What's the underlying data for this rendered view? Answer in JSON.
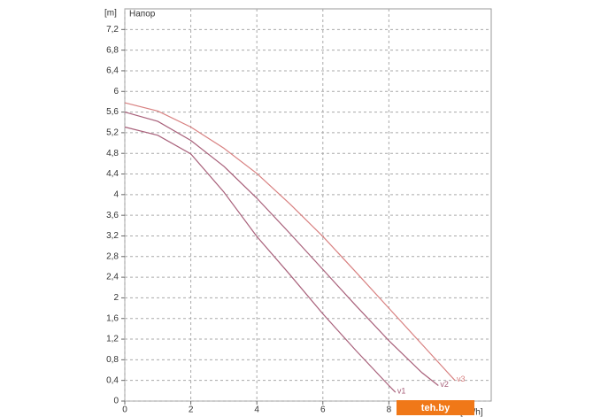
{
  "chart_data": {
    "type": "line",
    "y_label": "[m]",
    "title": "Напор",
    "x_label": "[m³/h]",
    "watermark": "teh.by",
    "series": [
      {
        "name": "v1",
        "color": "#a8607a",
        "x": [
          0,
          1,
          2,
          3,
          4,
          5,
          6,
          7,
          8,
          8.2
        ],
        "values": [
          5.31,
          5.15,
          4.79,
          4.05,
          3.19,
          2.45,
          1.69,
          0.98,
          0.3,
          0.17
        ]
      },
      {
        "name": "v2",
        "color": "#a8607a",
        "x": [
          0,
          1,
          2,
          3,
          4,
          5,
          6,
          7,
          8,
          9,
          9.5
        ],
        "values": [
          5.6,
          5.42,
          5.05,
          4.55,
          3.93,
          3.25,
          2.55,
          1.85,
          1.17,
          0.55,
          0.3
        ]
      },
      {
        "name": "v3",
        "color": "#d88080",
        "x": [
          0,
          1,
          2,
          3,
          4,
          5,
          6,
          7,
          8,
          9,
          10
        ],
        "values": [
          5.78,
          5.62,
          5.31,
          4.9,
          4.41,
          3.82,
          3.19,
          2.5,
          1.8,
          1.1,
          0.4
        ]
      }
    ],
    "xlim": [
      0,
      11.1
    ],
    "ylim": [
      0,
      7.6
    ],
    "xticks": [
      0,
      2,
      4,
      6,
      8
    ],
    "yticks": [
      0,
      {
        "value": 0.4,
        "label": "0,4"
      },
      {
        "value": 0.8,
        "label": "0,8"
      },
      {
        "value": 1.2,
        "label": "1,2"
      },
      {
        "value": 1.6,
        "label": "1,6"
      },
      2,
      {
        "value": 2.4,
        "label": "2,4"
      },
      {
        "value": 2.8,
        "label": "2,8"
      },
      {
        "value": 3.2,
        "label": "3,2"
      },
      {
        "value": 3.6,
        "label": "3,6"
      },
      4,
      {
        "value": 4.4,
        "label": "4,4"
      },
      {
        "value": 4.8,
        "label": "4,8"
      },
      {
        "value": 5.2,
        "label": "5,2"
      },
      {
        "value": 5.6,
        "label": "5,6"
      },
      6,
      {
        "value": 6.4,
        "label": "6,4"
      },
      {
        "value": 6.8,
        "label": "6,8"
      },
      {
        "value": 7.2,
        "label": "7,2"
      }
    ],
    "grid": true
  }
}
